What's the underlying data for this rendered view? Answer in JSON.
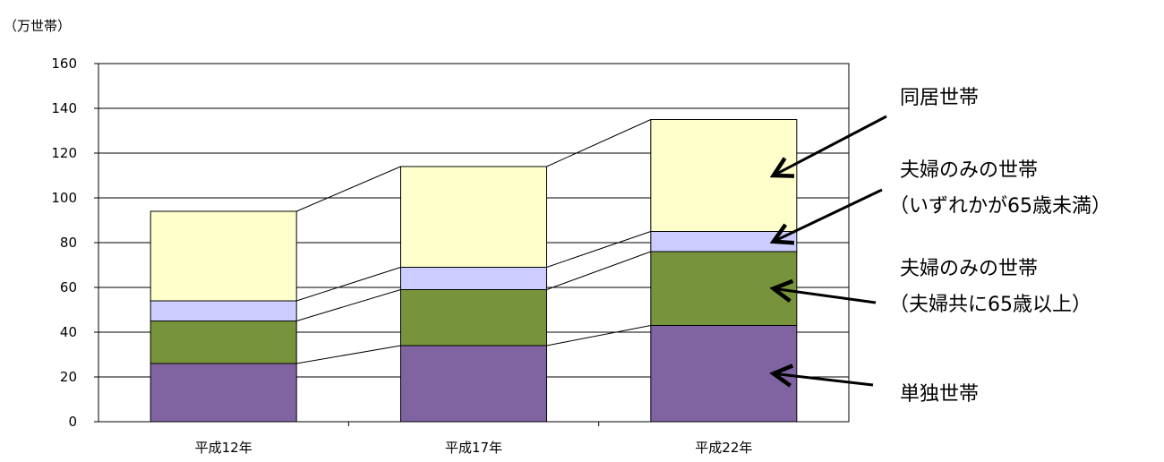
{
  "unit_label": "（万世帯）",
  "chart_data": {
    "type": "bar",
    "stacked": true,
    "categories": [
      "平成12年",
      "平成17年",
      "平成22年"
    ],
    "ylim": [
      0,
      160
    ],
    "yticks": [
      0,
      20,
      40,
      60,
      80,
      100,
      120,
      140,
      160
    ],
    "series": [
      {
        "name": "単独世帯",
        "color": "#8064A2",
        "values": [
          26,
          34,
          43
        ]
      },
      {
        "name": "夫婦のみの世帯（夫婦共に65歳以上）",
        "color": "#77933C",
        "values": [
          19,
          25,
          33
        ]
      },
      {
        "name": "夫婦のみの世帯（いずれかが65歳未満）",
        "color": "#CCCCFF",
        "values": [
          9,
          10,
          9
        ]
      },
      {
        "name": "同居世帯",
        "color": "#FFFFCC",
        "values": [
          40,
          45,
          50
        ]
      }
    ],
    "annotations": [
      {
        "lines": [
          "同居世帯"
        ],
        "series_index": 3
      },
      {
        "lines": [
          "夫婦のみの世帯",
          "（いずれかが65歳未満）"
        ],
        "series_index": 2
      },
      {
        "lines": [
          "夫婦のみの世帯",
          "（夫婦共に65歳以上）"
        ],
        "series_index": 1
      },
      {
        "lines": [
          "単独世帯"
        ],
        "series_index": 0
      }
    ]
  }
}
